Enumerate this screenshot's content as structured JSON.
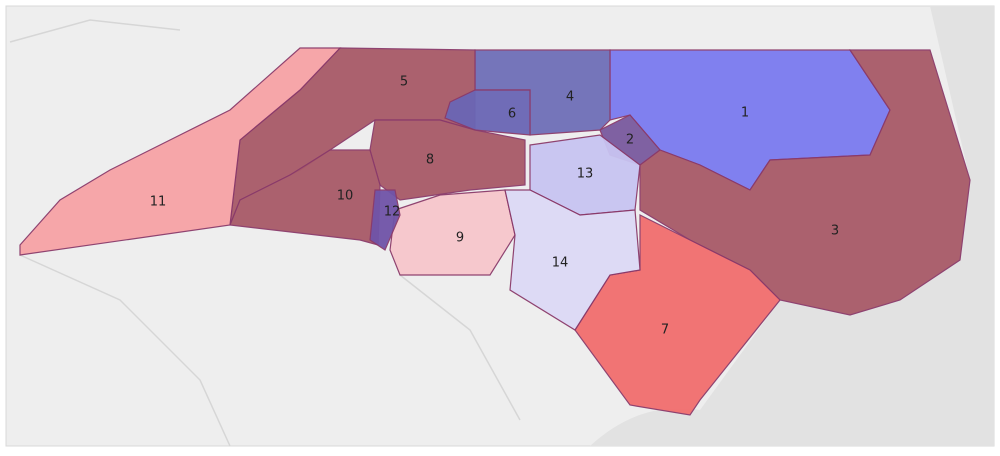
{
  "districts": [
    {
      "label": "1",
      "color": "#7b7bf0"
    },
    {
      "label": "2",
      "color": "#7a5a9e"
    },
    {
      "label": "3",
      "color": "#a85a68"
    },
    {
      "label": "4",
      "color": "#6f6fb8"
    },
    {
      "label": "5",
      "color": "#a85a68"
    },
    {
      "label": "6",
      "color": "#6a66b5"
    },
    {
      "label": "7",
      "color": "#f26e6e"
    },
    {
      "label": "8",
      "color": "#a85a68"
    },
    {
      "label": "9",
      "color": "#f7c6cc"
    },
    {
      "label": "10",
      "color": "#a85a68"
    },
    {
      "label": "11",
      "color": "#f7a3a6"
    },
    {
      "label": "12",
      "color": "#7054a8"
    },
    {
      "label": "13",
      "color": "#c8c4f2"
    },
    {
      "label": "14",
      "color": "#ddd9f6"
    }
  ]
}
